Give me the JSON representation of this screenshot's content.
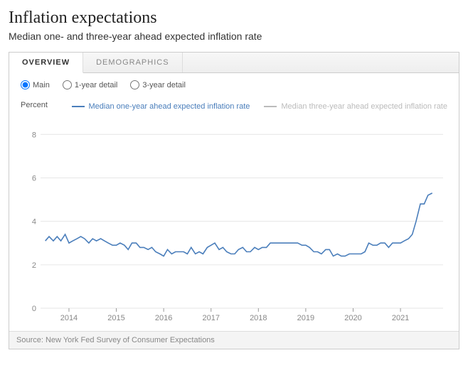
{
  "title": "Inflation expectations",
  "subtitle": "Median one- and three-year ahead expected inflation rate",
  "tabs": [
    {
      "label": "OVERVIEW",
      "active": true
    },
    {
      "label": "DEMOGRAPHICS",
      "active": false
    }
  ],
  "radios": [
    {
      "label": "Main",
      "checked": true
    },
    {
      "label": "1-year detail",
      "checked": false
    },
    {
      "label": "3-year detail",
      "checked": false
    }
  ],
  "chart": {
    "type": "line",
    "ylabel": "Percent",
    "legend": [
      {
        "label": "Median one-year ahead expected inflation rate",
        "color": "#4a7ebb",
        "active": true
      },
      {
        "label": "Median three-year ahead expected inflation rate",
        "color": "#bbbbbb",
        "active": false
      }
    ],
    "ylim": [
      0,
      8.5
    ],
    "yticks": [
      0,
      2,
      4,
      6,
      8
    ],
    "xlim": [
      2013.4,
      2021.9
    ],
    "xticks": [
      2014,
      2015,
      2016,
      2017,
      2018,
      2019,
      2020,
      2021
    ],
    "grid_color": "#e6e6e6",
    "background_color": "#ffffff",
    "line_width": 1.6,
    "series1": {
      "color": "#4a7ebb",
      "x": [
        2013.5,
        2013.58,
        2013.67,
        2013.75,
        2013.83,
        2013.92,
        2014.0,
        2014.08,
        2014.17,
        2014.25,
        2014.33,
        2014.42,
        2014.5,
        2014.58,
        2014.67,
        2014.75,
        2014.83,
        2014.92,
        2015.0,
        2015.08,
        2015.17,
        2015.25,
        2015.33,
        2015.42,
        2015.5,
        2015.58,
        2015.67,
        2015.75,
        2015.83,
        2015.92,
        2016.0,
        2016.08,
        2016.17,
        2016.25,
        2016.33,
        2016.42,
        2016.5,
        2016.58,
        2016.67,
        2016.75,
        2016.83,
        2016.92,
        2017.0,
        2017.08,
        2017.17,
        2017.25,
        2017.33,
        2017.42,
        2017.5,
        2017.58,
        2017.67,
        2017.75,
        2017.83,
        2017.92,
        2018.0,
        2018.08,
        2018.17,
        2018.25,
        2018.33,
        2018.42,
        2018.5,
        2018.58,
        2018.67,
        2018.75,
        2018.83,
        2018.92,
        2019.0,
        2019.08,
        2019.17,
        2019.25,
        2019.33,
        2019.42,
        2019.5,
        2019.58,
        2019.67,
        2019.75,
        2019.83,
        2019.92,
        2020.0,
        2020.08,
        2020.17,
        2020.25,
        2020.33,
        2020.42,
        2020.5,
        2020.58,
        2020.67,
        2020.75,
        2020.83,
        2020.92,
        2021.0,
        2021.08,
        2021.17,
        2021.25,
        2021.33,
        2021.42,
        2021.5,
        2021.58,
        2021.67
      ],
      "y": [
        3.1,
        3.3,
        3.1,
        3.3,
        3.1,
        3.4,
        3.0,
        3.1,
        3.2,
        3.3,
        3.2,
        3.0,
        3.2,
        3.1,
        3.2,
        3.1,
        3.0,
        2.9,
        2.9,
        3.0,
        2.9,
        2.7,
        3.0,
        3.0,
        2.8,
        2.8,
        2.7,
        2.8,
        2.6,
        2.5,
        2.4,
        2.7,
        2.5,
        2.6,
        2.6,
        2.6,
        2.5,
        2.8,
        2.5,
        2.6,
        2.5,
        2.8,
        2.9,
        3.0,
        2.7,
        2.8,
        2.6,
        2.5,
        2.5,
        2.7,
        2.8,
        2.6,
        2.6,
        2.8,
        2.7,
        2.8,
        2.8,
        3.0,
        3.0,
        3.0,
        3.0,
        3.0,
        3.0,
        3.0,
        3.0,
        2.9,
        2.9,
        2.8,
        2.6,
        2.6,
        2.5,
        2.7,
        2.7,
        2.4,
        2.5,
        2.4,
        2.4,
        2.5,
        2.5,
        2.5,
        2.5,
        2.6,
        3.0,
        2.9,
        2.9,
        3.0,
        3.0,
        2.8,
        3.0,
        3.0,
        3.0,
        3.1,
        3.2,
        3.4,
        4.0,
        4.8,
        4.8,
        5.2,
        5.3
      ]
    }
  },
  "source": "Source: New York Fed Survey of Consumer Expectations"
}
